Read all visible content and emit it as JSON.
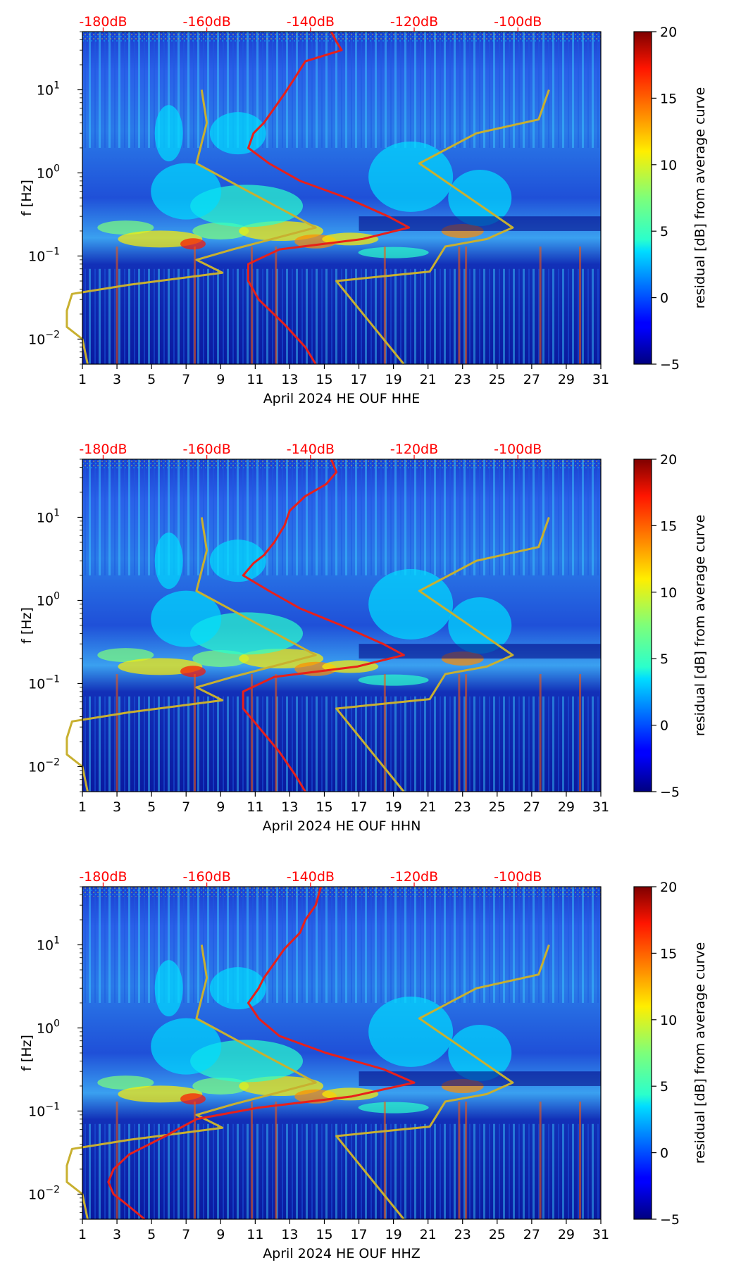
{
  "chart_data": [
    {
      "type": "heatmap",
      "title": "",
      "xlabel": "April 2024 HE OUF  HHE",
      "ylabel": "f [Hz]",
      "colorbar_label": "residual [dB] from average curve",
      "colorbar_ticks": [
        "20",
        "15",
        "10",
        "5",
        "0",
        "−5"
      ],
      "x_ticks": [
        "1",
        "3",
        "5",
        "7",
        "9",
        "11",
        "13",
        "15",
        "17",
        "19",
        "21",
        "23",
        "25",
        "27",
        "29",
        "31"
      ],
      "y_ticks": [
        {
          "base": "10",
          "exp": "1"
        },
        {
          "base": "10",
          "exp": "0"
        },
        {
          "base": "10",
          "exp": "−1"
        },
        {
          "base": "10",
          "exp": "−2"
        }
      ],
      "top_ticks": [
        "-180dB",
        "-160dB",
        "-140dB",
        "-120dB",
        "-100dB"
      ],
      "xlim": [
        1,
        31
      ],
      "ylim": [
        0.005,
        50
      ],
      "clim": [
        -5,
        20
      ],
      "overlays": {
        "red_curve": [
          [
            -136,
            50
          ],
          [
            -135,
            38
          ],
          [
            -134,
            30
          ],
          [
            -141,
            22
          ],
          [
            -143,
            14
          ],
          [
            -145,
            9
          ],
          [
            -147,
            6
          ],
          [
            -149,
            4
          ],
          [
            -151,
            3
          ],
          [
            -152,
            2
          ],
          [
            -148,
            1.3
          ],
          [
            -142,
            0.8
          ],
          [
            -133,
            0.5
          ],
          [
            -125,
            0.3
          ],
          [
            -121,
            0.22
          ],
          [
            -130,
            0.16
          ],
          [
            -146,
            0.12
          ],
          [
            -152,
            0.08
          ],
          [
            -152,
            0.05
          ],
          [
            -150,
            0.03
          ],
          [
            -145,
            0.015
          ],
          [
            -141,
            0.008
          ],
          [
            -139,
            0.005
          ]
        ],
        "yellow_curve": [
          [
            -161,
            10
          ],
          [
            -160,
            4
          ],
          [
            -162,
            1.3
          ],
          [
            -152,
            0.6
          ],
          [
            -143,
            0.3
          ],
          [
            -139,
            0.22
          ],
          [
            -155,
            0.12
          ],
          [
            -162,
            0.09
          ],
          [
            -157,
            0.063
          ],
          [
            -175,
            0.045
          ],
          [
            -186,
            0.035
          ],
          [
            -187,
            0.022
          ],
          [
            -187,
            0.014
          ],
          [
            -184,
            0.01
          ],
          [
            -183,
            0.005
          ]
        ],
        "yellow_curve_2": [
          [
            -94,
            10
          ],
          [
            -96,
            4.4
          ],
          [
            -108,
            3
          ],
          [
            -119,
            1.3
          ],
          [
            -101,
            0.22
          ],
          [
            -106,
            0.16
          ],
          [
            -114,
            0.13
          ],
          [
            -117,
            0.065
          ],
          [
            -135,
            0.05
          ],
          [
            -122,
            0.005
          ]
        ]
      }
    },
    {
      "type": "heatmap",
      "title": "",
      "xlabel": "April 2024 HE OUF  HHN",
      "ylabel": "f [Hz]",
      "colorbar_label": "residual [dB] from average curve",
      "colorbar_ticks": [
        "20",
        "15",
        "10",
        "5",
        "0",
        "−5"
      ],
      "x_ticks": [
        "1",
        "3",
        "5",
        "7",
        "9",
        "11",
        "13",
        "15",
        "17",
        "19",
        "21",
        "23",
        "25",
        "27",
        "29",
        "31"
      ],
      "y_ticks": [
        {
          "base": "10",
          "exp": "1"
        },
        {
          "base": "10",
          "exp": "0"
        },
        {
          "base": "10",
          "exp": "−1"
        },
        {
          "base": "10",
          "exp": "−2"
        }
      ],
      "top_ticks": [
        "-180dB",
        "-160dB",
        "-140dB",
        "-120dB",
        "-100dB"
      ],
      "xlim": [
        1,
        31
      ],
      "ylim": [
        0.005,
        50
      ],
      "clim": [
        -5,
        20
      ],
      "overlays": {
        "red_curve": [
          [
            -136,
            50
          ],
          [
            -135,
            35
          ],
          [
            -137,
            25
          ],
          [
            -141,
            18
          ],
          [
            -144,
            12
          ],
          [
            -145,
            8
          ],
          [
            -147,
            5
          ],
          [
            -149,
            3.5
          ],
          [
            -151,
            2.8
          ],
          [
            -153,
            2
          ],
          [
            -148,
            1.3
          ],
          [
            -142,
            0.8
          ],
          [
            -134,
            0.5
          ],
          [
            -126,
            0.3
          ],
          [
            -122,
            0.22
          ],
          [
            -131,
            0.16
          ],
          [
            -147,
            0.12
          ],
          [
            -153,
            0.08
          ],
          [
            -153,
            0.05
          ],
          [
            -150,
            0.03
          ],
          [
            -146,
            0.015
          ],
          [
            -143,
            0.008
          ],
          [
            -141,
            0.005
          ]
        ],
        "yellow_curve": [
          [
            -161,
            10
          ],
          [
            -160,
            4
          ],
          [
            -162,
            1.3
          ],
          [
            -152,
            0.6
          ],
          [
            -143,
            0.3
          ],
          [
            -139,
            0.22
          ],
          [
            -155,
            0.12
          ],
          [
            -162,
            0.09
          ],
          [
            -157,
            0.063
          ],
          [
            -175,
            0.045
          ],
          [
            -186,
            0.035
          ],
          [
            -187,
            0.022
          ],
          [
            -187,
            0.014
          ],
          [
            -184,
            0.01
          ],
          [
            -183,
            0.005
          ]
        ],
        "yellow_curve_2": [
          [
            -94,
            10
          ],
          [
            -96,
            4.4
          ],
          [
            -108,
            3
          ],
          [
            -119,
            1.3
          ],
          [
            -101,
            0.22
          ],
          [
            -106,
            0.16
          ],
          [
            -114,
            0.13
          ],
          [
            -117,
            0.065
          ],
          [
            -135,
            0.05
          ],
          [
            -122,
            0.005
          ]
        ]
      }
    },
    {
      "type": "heatmap",
      "title": "",
      "xlabel": "April 2024 HE OUF  HHZ",
      "ylabel": "f [Hz]",
      "colorbar_label": "residual [dB] from average curve",
      "colorbar_ticks": [
        "20",
        "15",
        "10",
        "5",
        "0",
        "−5"
      ],
      "x_ticks": [
        "1",
        "3",
        "5",
        "7",
        "9",
        "11",
        "13",
        "15",
        "17",
        "19",
        "21",
        "23",
        "25",
        "27",
        "29",
        "31"
      ],
      "y_ticks": [
        {
          "base": "10",
          "exp": "1"
        },
        {
          "base": "10",
          "exp": "0"
        },
        {
          "base": "10",
          "exp": "−1"
        },
        {
          "base": "10",
          "exp": "−2"
        }
      ],
      "top_ticks": [
        "-180dB",
        "-160dB",
        "-140dB",
        "-120dB",
        "-100dB"
      ],
      "xlim": [
        1,
        31
      ],
      "ylim": [
        0.005,
        50
      ],
      "clim": [
        -5,
        20
      ],
      "overlays": {
        "red_curve": [
          [
            -138,
            50
          ],
          [
            -139,
            30
          ],
          [
            -141,
            20
          ],
          [
            -142,
            14
          ],
          [
            -145,
            9
          ],
          [
            -147,
            6
          ],
          [
            -149,
            4
          ],
          [
            -150,
            3
          ],
          [
            -152,
            2
          ],
          [
            -150,
            1.3
          ],
          [
            -146,
            0.8
          ],
          [
            -137,
            0.5
          ],
          [
            -126,
            0.32
          ],
          [
            -120,
            0.22
          ],
          [
            -132,
            0.15
          ],
          [
            -150,
            0.11
          ],
          [
            -162,
            0.08
          ],
          [
            -168,
            0.05
          ],
          [
            -175,
            0.03
          ],
          [
            -178,
            0.02
          ],
          [
            -179,
            0.014
          ],
          [
            -178,
            0.01
          ],
          [
            -176,
            0.008
          ],
          [
            -172,
            0.005
          ]
        ],
        "yellow_curve": [
          [
            -161,
            10
          ],
          [
            -160,
            4
          ],
          [
            -162,
            1.3
          ],
          [
            -152,
            0.6
          ],
          [
            -143,
            0.3
          ],
          [
            -139,
            0.22
          ],
          [
            -155,
            0.12
          ],
          [
            -162,
            0.09
          ],
          [
            -157,
            0.063
          ],
          [
            -175,
            0.045
          ],
          [
            -186,
            0.035
          ],
          [
            -187,
            0.022
          ],
          [
            -187,
            0.014
          ],
          [
            -184,
            0.01
          ],
          [
            -183,
            0.005
          ]
        ],
        "yellow_curve_2": [
          [
            -94,
            10
          ],
          [
            -96,
            4.4
          ],
          [
            -108,
            3
          ],
          [
            -119,
            1.3
          ],
          [
            -101,
            0.22
          ],
          [
            -106,
            0.16
          ],
          [
            -114,
            0.13
          ],
          [
            -117,
            0.065
          ],
          [
            -135,
            0.05
          ],
          [
            -122,
            0.005
          ]
        ]
      }
    }
  ],
  "colors": {
    "red_curve": "#e8201a",
    "yellow_curve": "#c8b030",
    "top_tick_text": "#ff0000",
    "axis": "#000000"
  }
}
